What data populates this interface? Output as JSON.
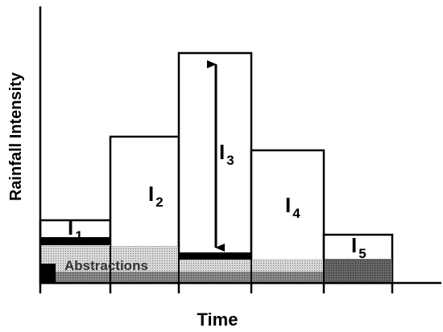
{
  "y_axis_label": "Rainfall Intensity",
  "x_axis_label": "Time",
  "abstractions_label": "Abstractions",
  "bars": [
    {
      "letter": "I",
      "sub": "1"
    },
    {
      "letter": "I",
      "sub": "2"
    },
    {
      "letter": "I",
      "sub": "3"
    },
    {
      "letter": "I",
      "sub": "4"
    },
    {
      "letter": "I",
      "sub": "5"
    }
  ]
}
